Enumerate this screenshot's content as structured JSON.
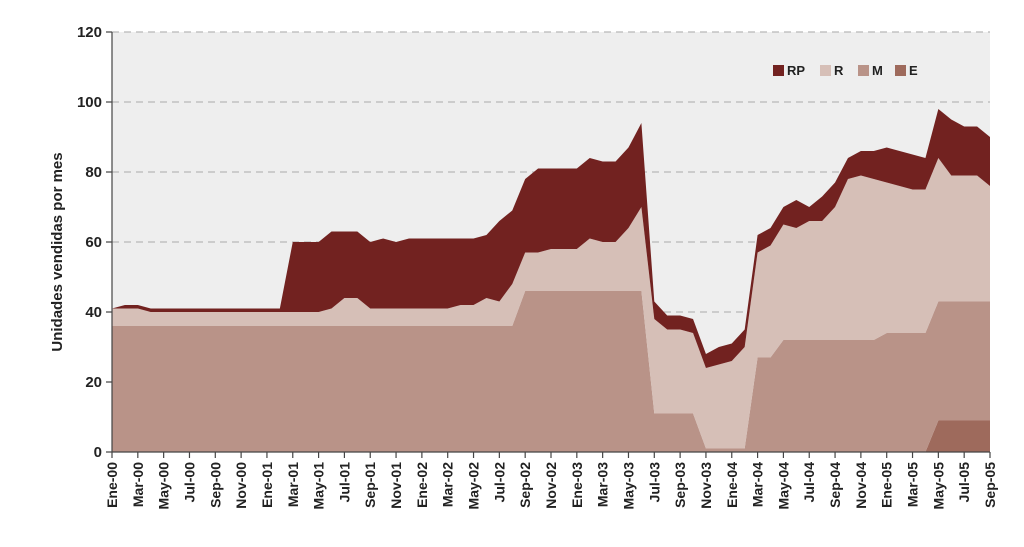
{
  "chart_data": {
    "type": "area",
    "stacked": true,
    "ylabel": "Unidades vendidas por mes",
    "xlabel": "",
    "ylim": [
      0,
      120
    ],
    "yticks": [
      0,
      20,
      40,
      60,
      80,
      100,
      120
    ],
    "grid": "horizontal-dashed",
    "legend_position": "top-right",
    "tick_labels": [
      "Ene-00",
      "Mar-00",
      "May-00",
      "Jul-00",
      "Sep-00",
      "Nov-00",
      "Ene-01",
      "Mar-01",
      "May-01",
      "Jul-01",
      "Sep-01",
      "Nov-01",
      "Ene-02",
      "Mar-02",
      "May-02",
      "Jul-02",
      "Sep-02",
      "Nov-02",
      "Ene-03",
      "Mar-03",
      "May-03",
      "Jul-03",
      "Sep-03",
      "Nov-03",
      "Ene-04",
      "Mar-04",
      "May-04",
      "Jul-04",
      "Sep-04",
      "Nov-04",
      "Ene-05",
      "Mar-05",
      "May-05",
      "Jul-05",
      "Sep-05"
    ],
    "months": [
      "Ene-00",
      "Feb-00",
      "Mar-00",
      "Abr-00",
      "May-00",
      "Jun-00",
      "Jul-00",
      "Ago-00",
      "Sep-00",
      "Oct-00",
      "Nov-00",
      "Dic-00",
      "Ene-01",
      "Feb-01",
      "Mar-01",
      "Abr-01",
      "May-01",
      "Jun-01",
      "Jul-01",
      "Ago-01",
      "Sep-01",
      "Oct-01",
      "Nov-01",
      "Dic-01",
      "Ene-02",
      "Feb-02",
      "Mar-02",
      "Abr-02",
      "May-02",
      "Jun-02",
      "Jul-02",
      "Ago-02",
      "Sep-02",
      "Oct-02",
      "Nov-02",
      "Dic-02",
      "Ene-03",
      "Feb-03",
      "Mar-03",
      "Abr-03",
      "May-03",
      "Jun-03",
      "Jul-03",
      "Ago-03",
      "Sep-03",
      "Oct-03",
      "Nov-03",
      "Dic-03",
      "Ene-04",
      "Feb-04",
      "Mar-04",
      "Abr-04",
      "May-04",
      "Jun-04",
      "Jul-04",
      "Ago-04",
      "Sep-04",
      "Oct-04",
      "Nov-04",
      "Dic-04",
      "Ene-05",
      "Feb-05",
      "Mar-05",
      "Abr-05",
      "May-05",
      "Jun-05",
      "Jul-05",
      "Ago-05",
      "Sep-05"
    ],
    "series": [
      {
        "name": "E",
        "color": "#9e6a5c",
        "values": [
          0,
          0,
          0,
          0,
          0,
          0,
          0,
          0,
          0,
          0,
          0,
          0,
          0,
          0,
          0,
          0,
          0,
          0,
          0,
          0,
          0,
          0,
          0,
          0,
          0,
          0,
          0,
          0,
          0,
          0,
          0,
          0,
          0,
          0,
          0,
          0,
          0,
          0,
          0,
          0,
          0,
          0,
          0,
          0,
          0,
          0,
          0,
          0,
          0,
          0,
          0,
          0,
          0,
          0,
          0,
          0,
          0,
          0,
          0,
          0,
          0,
          0,
          0,
          0,
          9,
          9,
          9,
          9,
          9
        ]
      },
      {
        "name": "M",
        "color": "#b99388",
        "values": [
          36,
          36,
          36,
          36,
          36,
          36,
          36,
          36,
          36,
          36,
          36,
          36,
          36,
          36,
          36,
          36,
          36,
          36,
          36,
          36,
          36,
          36,
          36,
          36,
          36,
          36,
          36,
          36,
          36,
          36,
          36,
          36,
          46,
          46,
          46,
          46,
          46,
          46,
          46,
          46,
          46,
          46,
          11,
          11,
          11,
          11,
          1,
          1,
          1,
          1,
          27,
          27,
          32,
          32,
          32,
          32,
          32,
          32,
          32,
          32,
          34,
          34,
          34,
          34,
          34,
          34,
          34,
          34,
          34
        ]
      },
      {
        "name": "R",
        "color": "#d6bfb7",
        "values": [
          5,
          5,
          5,
          4,
          4,
          4,
          4,
          4,
          4,
          4,
          4,
          4,
          4,
          4,
          4,
          4,
          4,
          5,
          8,
          8,
          5,
          5,
          5,
          5,
          5,
          5,
          5,
          6,
          6,
          8,
          7,
          12,
          11,
          11,
          12,
          12,
          12,
          15,
          14,
          14,
          18,
          24,
          27,
          24,
          24,
          23,
          23,
          24,
          25,
          29,
          30,
          32,
          33,
          32,
          34,
          34,
          38,
          46,
          47,
          46,
          43,
          42,
          41,
          41,
          41,
          36,
          36,
          36,
          33
        ]
      },
      {
        "name": "RP",
        "color": "#722220",
        "values": [
          0,
          1,
          1,
          1,
          1,
          1,
          1,
          1,
          1,
          1,
          1,
          1,
          1,
          1,
          20,
          20,
          20,
          22,
          19,
          19,
          19,
          20,
          19,
          20,
          20,
          20,
          20,
          19,
          19,
          18,
          23,
          21,
          21,
          24,
          23,
          23,
          23,
          23,
          23,
          23,
          23,
          24,
          5,
          4,
          4,
          4,
          4,
          5,
          5,
          5,
          5,
          5,
          5,
          8,
          4,
          7,
          7,
          6,
          7,
          8,
          10,
          10,
          10,
          9,
          14,
          16,
          14,
          14,
          14
        ]
      }
    ]
  }
}
